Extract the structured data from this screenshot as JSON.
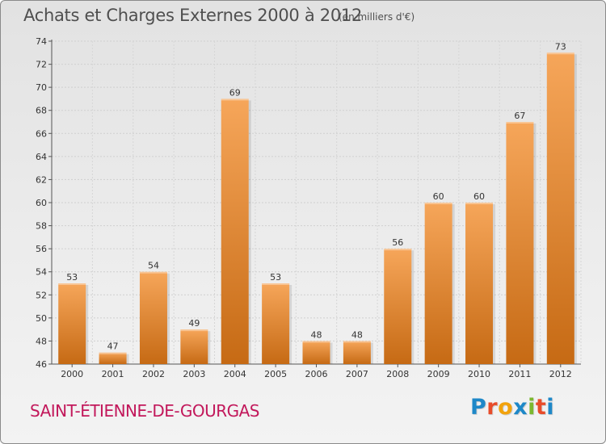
{
  "header": {
    "title": "Achats et Charges Externes 2000 à 2012",
    "subtitle": "(en milliers d'€)"
  },
  "footer": {
    "commune": "SAINT-ÉTIENNE-DE-GOURGAS",
    "logo_letters": [
      "P",
      "r",
      "o",
      "x",
      "i",
      "t",
      "i"
    ],
    "logo_colors": [
      "#1e88c8",
      "#e84c2a",
      "#f2a20c",
      "#1e88c8",
      "#7cb82f",
      "#e84c2a",
      "#1e88c8"
    ]
  },
  "colors": {
    "bar_top": "#f6a65a",
    "bar_bottom": "#c66a14",
    "commune": "#c2185b"
  },
  "chart_data": {
    "type": "bar",
    "title": "Achats et Charges Externes 2000 à 2012",
    "subtitle": "(en milliers d'€)",
    "categories": [
      "2000",
      "2001",
      "2002",
      "2003",
      "2004",
      "2005",
      "2006",
      "2007",
      "2008",
      "2009",
      "2010",
      "2011",
      "2012"
    ],
    "values": [
      53,
      47,
      54,
      49,
      69,
      53,
      48,
      48,
      56,
      60,
      60,
      67,
      73
    ],
    "ylim": [
      46,
      74
    ],
    "yticks": [
      46,
      48,
      50,
      52,
      54,
      56,
      58,
      60,
      62,
      64,
      66,
      68,
      70,
      72,
      74
    ],
    "grid": true,
    "legend": "none",
    "data_labels": true
  }
}
